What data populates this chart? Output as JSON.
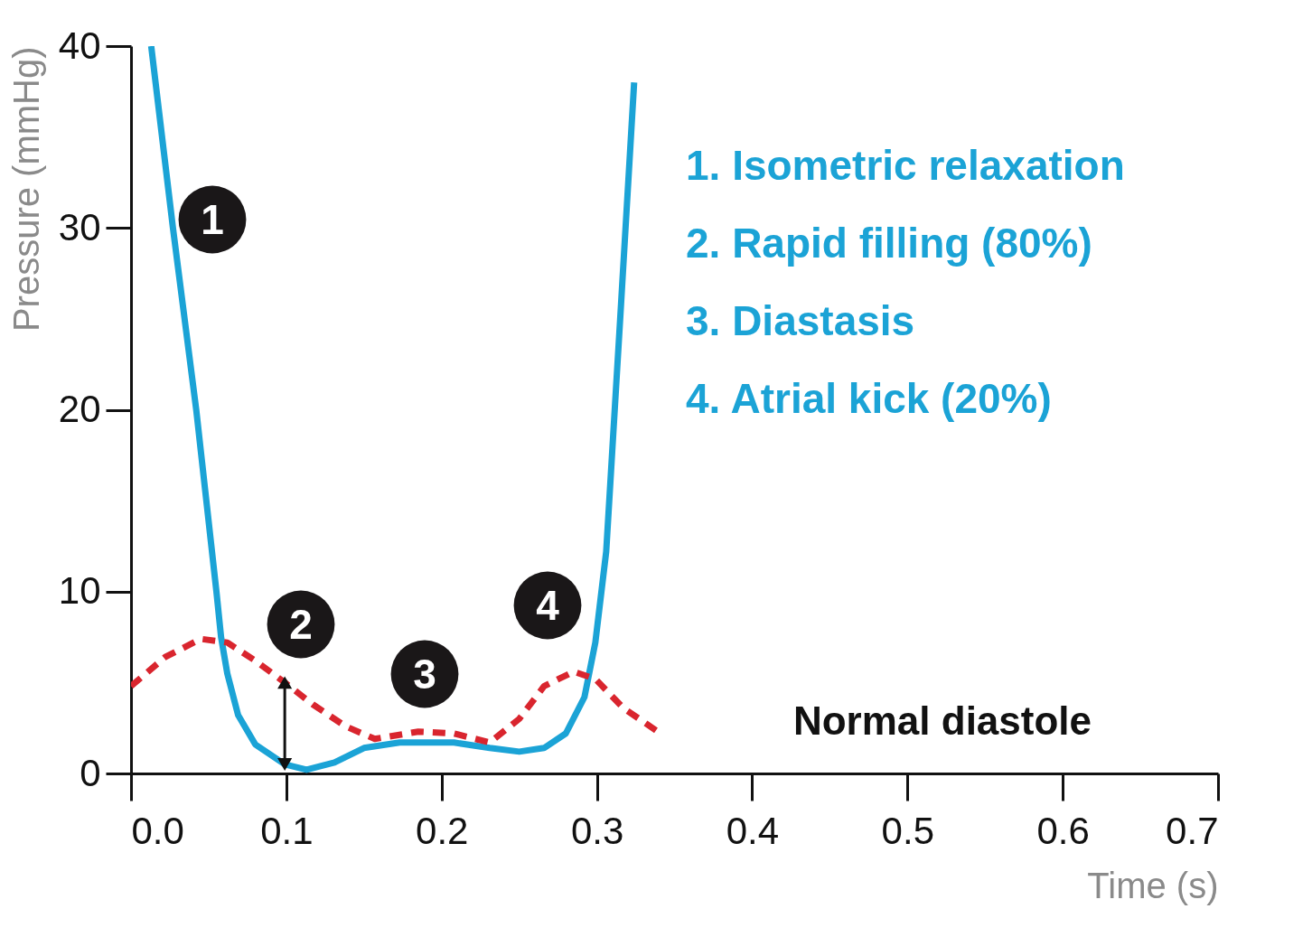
{
  "chart_data": {
    "type": "line",
    "xlabel": "Time (s)",
    "ylabel": "Pressure (mmHg)",
    "xlim": [
      0,
      0.7
    ],
    "ylim": [
      0,
      40
    ],
    "xticks": [
      {
        "value": 0,
        "label": "0.0"
      },
      0.1,
      0.2,
      0.3,
      0.4,
      0.5,
      0.6,
      0.7
    ],
    "yticks": [
      0,
      10,
      20,
      30,
      40
    ],
    "grid": false,
    "series": [
      {
        "color": "#1ba3d6",
        "line_style": "solid",
        "x": [
          0.013,
          0.027,
          0.042,
          0.055,
          0.058,
          0.062,
          0.069,
          0.08,
          0.099,
          0.113,
          0.131,
          0.15,
          0.173,
          0.208,
          0.231,
          0.25,
          0.266,
          0.28,
          0.292,
          0.299,
          0.306,
          0.315,
          0.324
        ],
        "values": [
          40,
          30,
          20,
          10,
          7.5,
          5.5,
          3.2,
          1.6,
          0.5,
          0.2,
          0.6,
          1.4,
          1.7,
          1.7,
          1.4,
          1.2,
          1.4,
          2.2,
          4.2,
          7.2,
          12.2,
          25,
          38
        ]
      },
      {
        "color": "#d9252e",
        "line_style": "dashed",
        "x": [
          0,
          0.022,
          0.045,
          0.062,
          0.08,
          0.099,
          0.117,
          0.138,
          0.157,
          0.185,
          0.208,
          0.231,
          0.25,
          0.266,
          0.285,
          0.299,
          0.317,
          0.341
        ],
        "values": [
          4.8,
          6.4,
          7.4,
          7.2,
          6.2,
          5,
          3.8,
          2.6,
          1.9,
          2.3,
          2.2,
          1.7,
          3,
          4.8,
          5.6,
          5.2,
          3.6,
          2.2
        ]
      }
    ],
    "annotations": [
      "1",
      {
        "text": "2",
        "x": 0.099,
        "y": 5
      },
      "3",
      "4",
      "1. Isometric relaxation",
      "2. Rapid filling (80%)",
      "3. Diastasis",
      "4. Atrial kick (20%)",
      "Normal diastole"
    ]
  }
}
